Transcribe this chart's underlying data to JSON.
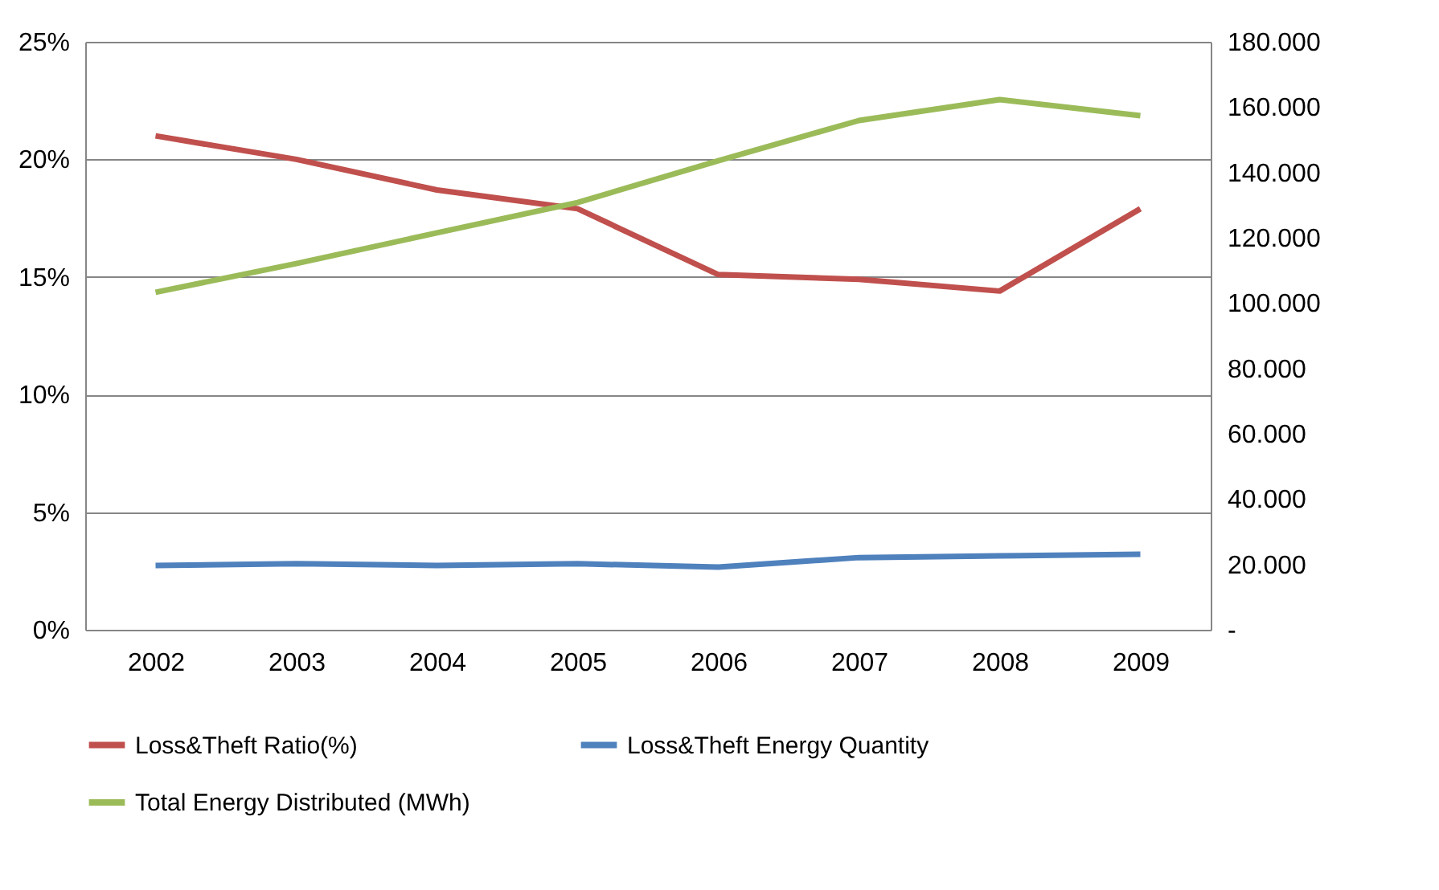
{
  "chart_data": {
    "type": "line",
    "categories": [
      "2002",
      "2003",
      "2004",
      "2005",
      "2006",
      "2007",
      "2008",
      "2009"
    ],
    "series": [
      {
        "name": "Loss&Theft Ratio(%)",
        "color": "#c0504d",
        "values": [
          21.0,
          20.0,
          18.7,
          17.9,
          15.1,
          14.9,
          14.4,
          17.9
        ]
      },
      {
        "name": "Loss&Theft Energy Quantity",
        "color": "#4f81bd",
        "axis": "y2",
        "values": [
          19700,
          20200,
          19700,
          20200,
          19200,
          22100,
          22600,
          23100
        ]
      },
      {
        "name": "Total Energy Distributed (MWh)",
        "color": "#9bbb59",
        "axis": "y2",
        "values": [
          103300,
          112100,
          121500,
          130800,
          143600,
          155900,
          162300,
          157400
        ]
      }
    ],
    "ylim": [
      0,
      25
    ],
    "yticks": [
      {
        "value": 0,
        "label": "0%"
      },
      {
        "value": 5,
        "label": "5%"
      },
      {
        "value": 10,
        "label": "10%"
      },
      {
        "value": 15,
        "label": "15%"
      },
      {
        "value": 20,
        "label": "20%"
      },
      {
        "value": 25,
        "label": "25%"
      }
    ],
    "y2lim": [
      0,
      180000
    ],
    "y2ticks": [
      {
        "value": 0,
        "label": "-"
      },
      {
        "value": 20000,
        "label": "20.000"
      },
      {
        "value": 40000,
        "label": "40.000"
      },
      {
        "value": 60000,
        "label": "60.000"
      },
      {
        "value": 80000,
        "label": "80.000"
      },
      {
        "value": 100000,
        "label": "100.000"
      },
      {
        "value": 120000,
        "label": "120.000"
      },
      {
        "value": 140000,
        "label": "140.000"
      },
      {
        "value": 160000,
        "label": "160.000"
      },
      {
        "value": 180000,
        "label": "180.000"
      }
    ],
    "grid": "y",
    "legend": "bottom",
    "marker": "none",
    "line_style": "solid"
  }
}
